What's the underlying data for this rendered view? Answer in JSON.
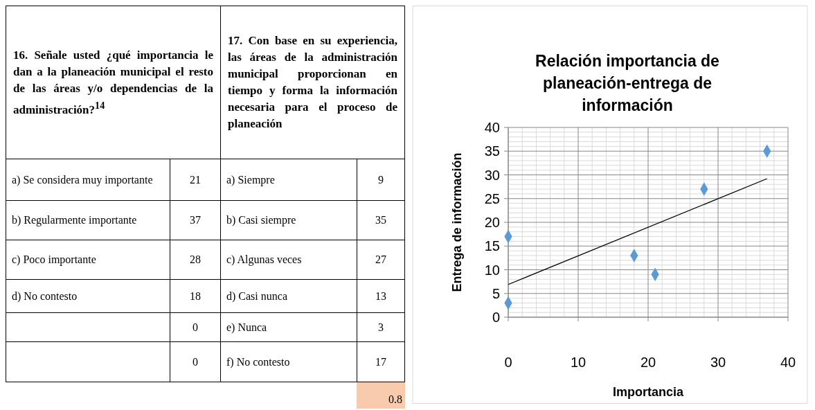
{
  "chart_data": [
    {
      "type": "other",
      "title": "16. Señale usted ¿qué importancia le dan a la planeación municipal el resto de las áreas y/o dependencias de la administración?$^{14}$",
      "categories": [
        "a) Se considera muy importante",
        "b) Regularmente importante",
        "c) Poco importante",
        "d) No contesto",
        null,
        null
      ],
      "values": [
        21,
        37,
        28,
        18,
        0,
        0
      ],
      "data_labels": true
    },
    {
      "type": "other",
      "title": "17. Con base en su experiencia, las áreas de la administración municipal proporcionan en tiempo y forma la información necesaria para el proceso de planeación",
      "categories": [
        "a) Siempre",
        "b) Casi siempre",
        "c) Algunas veces",
        "d) Casi nunca",
        "e) Nunca",
        "f) No contesto"
      ],
      "values": [
        9,
        35,
        27,
        13,
        3,
        17
      ],
      "data_labels": true,
      "annotations": [
        "0.8"
      ]
    },
    {
      "type": "scatter",
      "title": "Relación importancia de planeación-entrega de información",
      "xlabel": "Importancia",
      "ylabel": "Entrega de información",
      "grid": true,
      "xlim": [
        0,
        40
      ],
      "xticks": [
        0,
        10,
        20,
        30,
        40
      ],
      "ylim": [
        0,
        40
      ],
      "yticks": [
        0,
        5,
        10,
        15,
        20,
        25,
        30,
        35,
        40
      ],
      "series": [
        {
          "type": "scatter",
          "marker": "diamond",
          "color": "#5b9bd5",
          "x": [
            21,
            37,
            28,
            18,
            0,
            0
          ],
          "values": [
            9,
            35,
            27,
            13,
            3,
            17
          ]
        },
        {
          "type": "line",
          "color": "#000000",
          "x": [
            0,
            37
          ],
          "values": [
            6.9,
            29.2
          ]
        }
      ]
    }
  ]
}
